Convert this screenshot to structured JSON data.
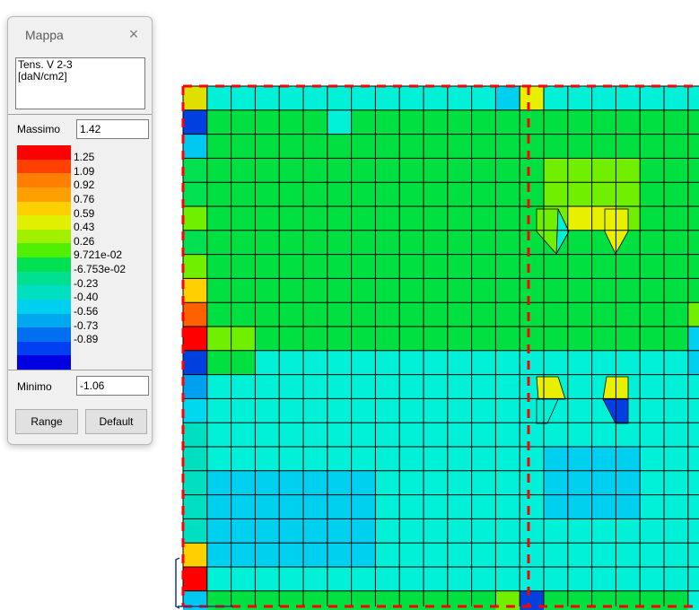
{
  "window": {
    "title": "Mappa",
    "close_glyph": "×",
    "quantity_line1": "Tens. V  2-3",
    "quantity_line2": "[daN/cm2]"
  },
  "max": {
    "label": "Massimo",
    "value": "1.42"
  },
  "min": {
    "label": "Minimo",
    "value": "-1.06"
  },
  "buttons": {
    "range": "Range",
    "default": "Default"
  },
  "legend": {
    "colors": [
      "#ff0000",
      "#ff4000",
      "#ff8000",
      "#ffa000",
      "#ffd000",
      "#e0f000",
      "#a0f000",
      "#50f000",
      "#00e050",
      "#00e090",
      "#00e0c0",
      "#00d0f0",
      "#00a8f0",
      "#0070f0",
      "#0040f0",
      "#0000e0"
    ],
    "labels": [
      "1.25",
      "1.09",
      "0.92",
      "0.76",
      "0.59",
      "0.43",
      "0.26",
      "9.721e-02",
      "-6.753e-02",
      "-0.23",
      "-0.40",
      "-0.56",
      "-0.73",
      "-0.89"
    ]
  },
  "contour_colors": {
    "green": "#00e040",
    "lime": "#70f000",
    "yellow": "#e8f000",
    "cyan": "#00f0d8",
    "lightblue": "#00d0f0",
    "blue": "#00a8f0",
    "darkblue": "#0040e0",
    "red": "#ff0000",
    "orange": "#ff6000",
    "boundary": "#ff0000",
    "mesh": "#000000"
  }
}
